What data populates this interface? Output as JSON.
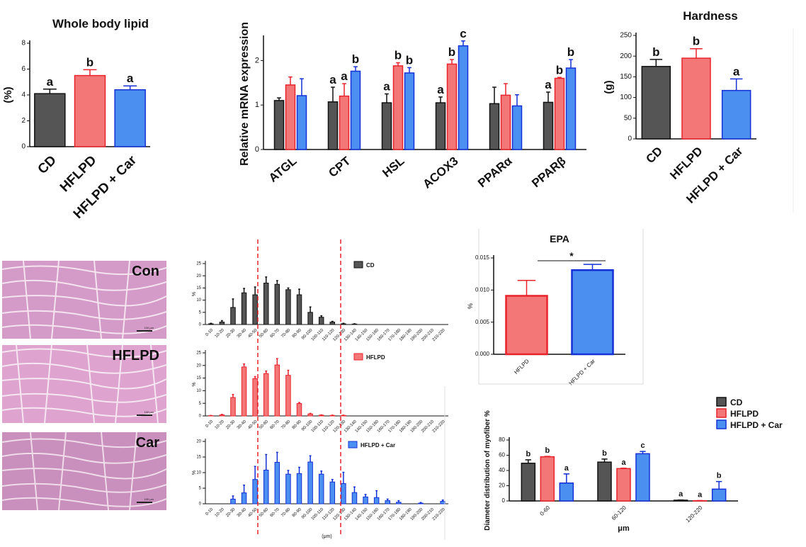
{
  "colors": {
    "cd": "#555555",
    "hflpd": "#f47778",
    "car": "#4b8ff0",
    "cd_edge": "#111111",
    "hflpd_edge": "#e8232b",
    "car_edge": "#1530d6",
    "photo": "#d59bc8",
    "dashed": "#e8232b"
  },
  "photos": [
    {
      "label": "Con",
      "scale": "100 μm"
    },
    {
      "label": "HFLPD",
      "scale": "100 μm"
    },
    {
      "label": "Car",
      "scale": "100 μm"
    }
  ],
  "chart_data": [
    {
      "id": "lipid",
      "type": "bar",
      "title": "Whole body lipid",
      "xlabel": "",
      "ylabel": "(%)",
      "categories": [
        "CD",
        "HFLPD",
        "HFLPD + Car"
      ],
      "values": [
        4.1,
        5.5,
        4.4
      ],
      "errors": [
        0.35,
        0.45,
        0.3
      ],
      "letters": [
        "a",
        "b",
        "a"
      ],
      "ylim": [
        0,
        8
      ],
      "yticks": [
        0,
        2,
        4,
        6,
        8
      ]
    },
    {
      "id": "mrna",
      "type": "bar",
      "title": "",
      "xlabel": "",
      "ylabel": "Relative mRNA expression",
      "categories": [
        "ATGL",
        "CPT",
        "HSL",
        "ACOX3",
        "PPARα",
        "PPARβ"
      ],
      "series": [
        {
          "values": [
            1.1,
            1.07,
            1.05,
            1.05,
            1.03,
            1.06
          ],
          "errors": [
            0.06,
            0.33,
            0.2,
            0.13,
            0.37,
            0.23
          ],
          "letters": [
            "",
            "a",
            "a",
            "a",
            "",
            "a"
          ]
        },
        {
          "values": [
            1.45,
            1.2,
            1.88,
            1.92,
            1.22,
            1.6
          ],
          "errors": [
            0.18,
            0.28,
            0.07,
            0.1,
            0.26,
            0.02
          ],
          "letters": [
            "",
            "a",
            "b",
            "b",
            "",
            "b"
          ]
        },
        {
          "values": [
            1.21,
            1.76,
            1.72,
            2.33,
            0.98,
            1.83
          ],
          "errors": [
            0.38,
            0.1,
            0.12,
            0.11,
            0.25,
            0.19
          ],
          "letters": [
            "",
            "b",
            "b",
            "c",
            "",
            "b"
          ]
        }
      ],
      "ylim": [
        0,
        2.5
      ],
      "yticks": [
        0,
        1,
        2
      ]
    },
    {
      "id": "hardness",
      "type": "bar",
      "title": "Hardness",
      "xlabel": "",
      "ylabel": "(g)",
      "categories": [
        "CD",
        "HFLPD",
        "HFLPD + Car"
      ],
      "values": [
        175,
        195,
        117
      ],
      "errors": [
        17,
        23,
        28
      ],
      "letters": [
        "b",
        "b",
        "a"
      ],
      "ylim": [
        0,
        250
      ],
      "yticks": [
        0,
        50,
        100,
        150,
        200,
        250
      ]
    },
    {
      "id": "hist_cd",
      "type": "bar",
      "title": "",
      "xlabel": "",
      "ylabel": "%",
      "legend": "CD",
      "categories": [
        "0-10",
        "10-20",
        "20-30",
        "30-40",
        "40-50",
        "50-60",
        "60-70",
        "70-80",
        "80-90",
        "90-100",
        "100-110",
        "110-120",
        "120-130",
        "130-140",
        "140-150",
        "150-160",
        "160-170",
        "170-180",
        "180-190",
        "190-200",
        "200-210",
        "210-220"
      ],
      "values": [
        0.3,
        1,
        7,
        13,
        12.2,
        17,
        16.5,
        14.3,
        12.2,
        5,
        3,
        1,
        0.3,
        0.2,
        0,
        0,
        0,
        0,
        0,
        0,
        0,
        0
      ],
      "errors": [
        0.2,
        0.6,
        3.5,
        1.8,
        3.2,
        2.5,
        1.5,
        0.7,
        2.3,
        2.2,
        0.6,
        0.3,
        0.2,
        0.1,
        0,
        0,
        0,
        0,
        0,
        0,
        0,
        0
      ],
      "ylim": [
        0,
        25
      ],
      "yticks": [
        0,
        5,
        10,
        15,
        20,
        25
      ]
    },
    {
      "id": "hist_hflpd",
      "type": "bar",
      "title": "",
      "xlabel": "",
      "ylabel": "%",
      "legend": "HFLPD",
      "categories": [
        "0-10",
        "10-20",
        "20-30",
        "30-40",
        "40-50",
        "50-60",
        "60-70",
        "70-80",
        "80-90",
        "90-100",
        "100-110",
        "110-120",
        "120-130",
        "130-140",
        "140-150",
        "150-160",
        "160-170",
        "170-180",
        "180-190",
        "190-200",
        "200-210",
        "210-220"
      ],
      "values": [
        0.1,
        0.4,
        7.3,
        19.4,
        14.8,
        16.8,
        20.2,
        16.1,
        4.9,
        0.8,
        0.3,
        0.2,
        0.2,
        0,
        0,
        0,
        0,
        0,
        0,
        0,
        0,
        0
      ],
      "errors": [
        0.1,
        0.2,
        1.2,
        1.2,
        0.8,
        1.0,
        2.5,
        2.0,
        0.4,
        0.2,
        0.1,
        0.1,
        0.1,
        0,
        0,
        0,
        0,
        0,
        0,
        0,
        0,
        0
      ],
      "ylim": [
        0,
        25
      ],
      "yticks": [
        0,
        5,
        10,
        15,
        20,
        25
      ]
    },
    {
      "id": "hist_car",
      "type": "bar",
      "title": "",
      "xlabel": "(μm)",
      "ylabel": "%",
      "legend": "HFLPD + Car",
      "categories": [
        "0-10",
        "10-20",
        "20-30",
        "30-40",
        "40-50",
        "50-60",
        "60-70",
        "70-80",
        "80-90",
        "90-100",
        "100-110",
        "110-120",
        "120-130",
        "130-140",
        "140-150",
        "150-160",
        "160-170",
        "170-180",
        "180-190",
        "190-200",
        "200-210",
        "210-220"
      ],
      "values": [
        0,
        0,
        1.5,
        3.5,
        7.8,
        10.8,
        13.3,
        9.5,
        9.7,
        13.4,
        9.5,
        7,
        6.5,
        3.6,
        2.2,
        2,
        1,
        0.5,
        0,
        0.2,
        0,
        0.8
      ],
      "errors": [
        0,
        0,
        1,
        2.5,
        4.2,
        5,
        3.2,
        1.2,
        2,
        2,
        1,
        0.8,
        3.6,
        1.8,
        0.8,
        2.2,
        0.5,
        0.5,
        0,
        0.2,
        0,
        0.4
      ],
      "ylim": [
        0,
        20
      ],
      "yticks": [
        0,
        5,
        10,
        15,
        20
      ]
    },
    {
      "id": "epa",
      "type": "bar",
      "title": "EPA",
      "xlabel": "",
      "ylabel": "%",
      "categories": [
        "HFLPD",
        "HFLPD + Car"
      ],
      "values": [
        0.0091,
        0.0131
      ],
      "errors": [
        0.0024,
        0.0009
      ],
      "significance": "*",
      "ylim": [
        0,
        0.015
      ],
      "yticks": [
        "0.000",
        "0.005",
        "0.010",
        "0.015"
      ]
    },
    {
      "id": "myofiber",
      "type": "bar",
      "title": "",
      "xlabel": "μm",
      "ylabel": "Diameter distribution of myofiber %",
      "categories": [
        "0-60",
        "60-120",
        "120-220"
      ],
      "series": [
        {
          "name": "CD",
          "values": [
            49.5,
            51,
            1
          ],
          "errors": [
            4.5,
            4,
            0.3
          ],
          "letters": [
            "b",
            "b",
            "a"
          ]
        },
        {
          "name": "HFLPD",
          "values": [
            58,
            42.5,
            0.3
          ],
          "errors": [
            0.5,
            0.5,
            0.2
          ],
          "letters": [
            "b",
            "a",
            "a"
          ]
        },
        {
          "name": "HFLPD + Car",
          "values": [
            23.5,
            62,
            15.5
          ],
          "errors": [
            12,
            3,
            10
          ],
          "letters": [
            "a",
            "c",
            "b"
          ]
        }
      ],
      "ylim": [
        0,
        80
      ],
      "yticks": [
        0,
        20,
        40,
        60,
        80
      ],
      "legend": "top-right"
    }
  ]
}
